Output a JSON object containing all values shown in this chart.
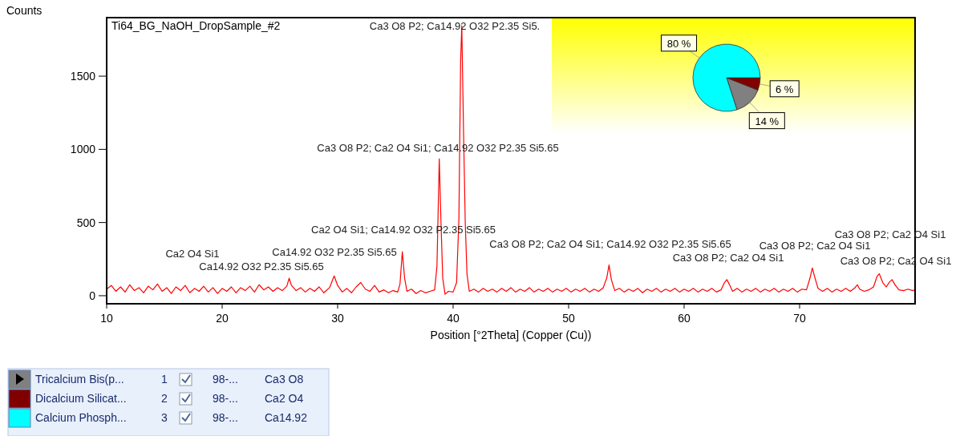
{
  "chart_data": [
    {
      "type": "line",
      "title": "Ti64_BG_NaOH_DropSample_#2",
      "xlabel": "Position [°2Theta] (Copper (Cu))",
      "ylabel": "Counts",
      "x": [
        10.0,
        10.4,
        10.8,
        11.2,
        11.6,
        12.0,
        12.4,
        12.8,
        13.2,
        13.6,
        14.0,
        14.4,
        14.8,
        15.2,
        15.6,
        16.0,
        16.4,
        16.8,
        17.2,
        17.6,
        18.0,
        18.4,
        18.8,
        19.2,
        19.6,
        20.0,
        20.4,
        20.8,
        21.2,
        21.6,
        22.0,
        22.4,
        22.8,
        23.2,
        23.6,
        24.0,
        24.4,
        24.8,
        25.2,
        25.6,
        25.8,
        26.0,
        26.4,
        26.8,
        27.2,
        27.6,
        28.0,
        28.4,
        28.8,
        29.3,
        29.7,
        30.0,
        30.4,
        30.8,
        31.2,
        31.6,
        32.0,
        32.4,
        32.8,
        33.2,
        33.6,
        34.0,
        34.4,
        34.8,
        35.2,
        35.4,
        35.6,
        35.8,
        36.0,
        36.4,
        36.8,
        37.2,
        37.6,
        38.0,
        38.4,
        38.6,
        38.8,
        38.95,
        39.1,
        39.3,
        39.6,
        40.0,
        40.3,
        40.5,
        40.65,
        40.75,
        40.9,
        41.05,
        41.2,
        41.4,
        41.8,
        42.2,
        42.6,
        43.0,
        43.4,
        43.8,
        44.2,
        44.6,
        45.0,
        45.4,
        45.8,
        46.2,
        46.6,
        47.0,
        47.4,
        47.8,
        48.2,
        48.6,
        49.0,
        49.4,
        49.8,
        50.2,
        50.6,
        51.0,
        51.4,
        51.8,
        52.2,
        52.6,
        53.0,
        53.3,
        53.5,
        53.7,
        54.0,
        54.4,
        54.8,
        55.2,
        55.6,
        56.0,
        56.4,
        56.8,
        57.2,
        57.6,
        58.0,
        58.4,
        58.8,
        59.2,
        59.6,
        60.0,
        60.4,
        60.8,
        61.2,
        61.6,
        62.0,
        62.4,
        62.8,
        63.2,
        63.5,
        63.7,
        63.9,
        64.2,
        64.6,
        65.0,
        65.4,
        65.8,
        66.2,
        66.6,
        67.0,
        67.4,
        67.8,
        68.2,
        68.6,
        69.0,
        69.4,
        69.8,
        70.2,
        70.6,
        70.9,
        71.1,
        71.3,
        71.6,
        72.0,
        72.4,
        72.8,
        73.2,
        73.6,
        74.0,
        74.4,
        74.8,
        75.0,
        75.2,
        75.6,
        76.0,
        76.4,
        76.7,
        76.9,
        77.2,
        77.5,
        77.8,
        78.0,
        78.3,
        78.6,
        79.0,
        79.4,
        79.8,
        80.0
      ],
      "series": [
        {
          "color": "#ff0000",
          "values": [
            45,
            70,
            30,
            60,
            25,
            75,
            35,
            55,
            20,
            65,
            40,
            80,
            30,
            55,
            15,
            60,
            35,
            70,
            20,
            50,
            30,
            65,
            25,
            55,
            15,
            50,
            30,
            60,
            20,
            55,
            35,
            65,
            25,
            75,
            40,
            60,
            30,
            55,
            35,
            65,
            120,
            70,
            35,
            55,
            25,
            50,
            30,
            60,
            20,
            55,
            135,
            70,
            25,
            50,
            20,
            60,
            90,
            45,
            30,
            70,
            25,
            40,
            20,
            35,
            25,
            80,
            300,
            120,
            30,
            45,
            15,
            35,
            20,
            30,
            40,
            200,
            935,
            500,
            120,
            10,
            30,
            25,
            90,
            520,
            1600,
            1845,
            1130,
            500,
            150,
            30,
            45,
            25,
            50,
            30,
            45,
            25,
            50,
            30,
            55,
            25,
            45,
            30,
            55,
            25,
            45,
            30,
            50,
            25,
            45,
            30,
            50,
            25,
            45,
            30,
            50,
            25,
            45,
            30,
            55,
            120,
            210,
            110,
            35,
            50,
            25,
            45,
            30,
            50,
            20,
            45,
            30,
            50,
            25,
            45,
            30,
            50,
            25,
            45,
            30,
            50,
            25,
            45,
            30,
            50,
            25,
            40,
            90,
            110,
            80,
            30,
            50,
            25,
            45,
            30,
            50,
            25,
            45,
            30,
            50,
            25,
            45,
            30,
            50,
            25,
            45,
            40,
            120,
            190,
            130,
            50,
            30,
            50,
            25,
            45,
            30,
            50,
            30,
            55,
            75,
            45,
            30,
            40,
            60,
            130,
            150,
            90,
            60,
            95,
            110,
            70,
            40,
            35,
            45,
            35,
            40
          ]
        }
      ],
      "xlim": [
        10,
        80
      ],
      "ylim": [
        -55,
        1900
      ],
      "xticks": [
        10,
        20,
        30,
        40,
        50,
        60,
        70
      ],
      "yticks": [
        0,
        500,
        1000,
        1500
      ],
      "annotations": [
        "Ca3 O8 P2; Ca14.92 O32 P2.35 Si5.",
        "Ca3 O8 P2; Ca2 O4 Si1; Ca14.92 O32 P2.35 Si5.65",
        "Ca2 O4 Si1; Ca14.92 O32 P2.35 Si5.65",
        "Ca3 O8 P2; Ca2 O4 Si1; Ca14.92 O32 P2.35 Si5.65",
        "Ca14.92 O32 P2.35 Si5.65",
        "Ca2 O4 Si1",
        "Ca14.92 O32 P2.35 Si5.65",
        "Ca3 O8 P2; Ca2 O4 Si1",
        "Ca3 O8 P2; Ca2 O4 Si1",
        "Ca3 O8 P2; Ca2 O4 Si1",
        "Ca3 O8 P2; Ca2 O4 Si1"
      ]
    },
    {
      "type": "pie",
      "categories": [
        "Tricalcium Bis(p...",
        "Dicalcium Silicat...",
        "Calcium Phosph..."
      ],
      "values": [
        14,
        6,
        80
      ],
      "colors": [
        "#808080",
        "#800000",
        "#00ffff"
      ],
      "value_labels": [
        "14 %",
        "6 %",
        "80 %"
      ],
      "legend": "bottom",
      "annotations": [
        "1",
        "98-...",
        "Ca3 O8",
        "2",
        "98-...",
        "Ca2 O4",
        "3",
        "98-...",
        "Ca14.92"
      ]
    }
  ]
}
